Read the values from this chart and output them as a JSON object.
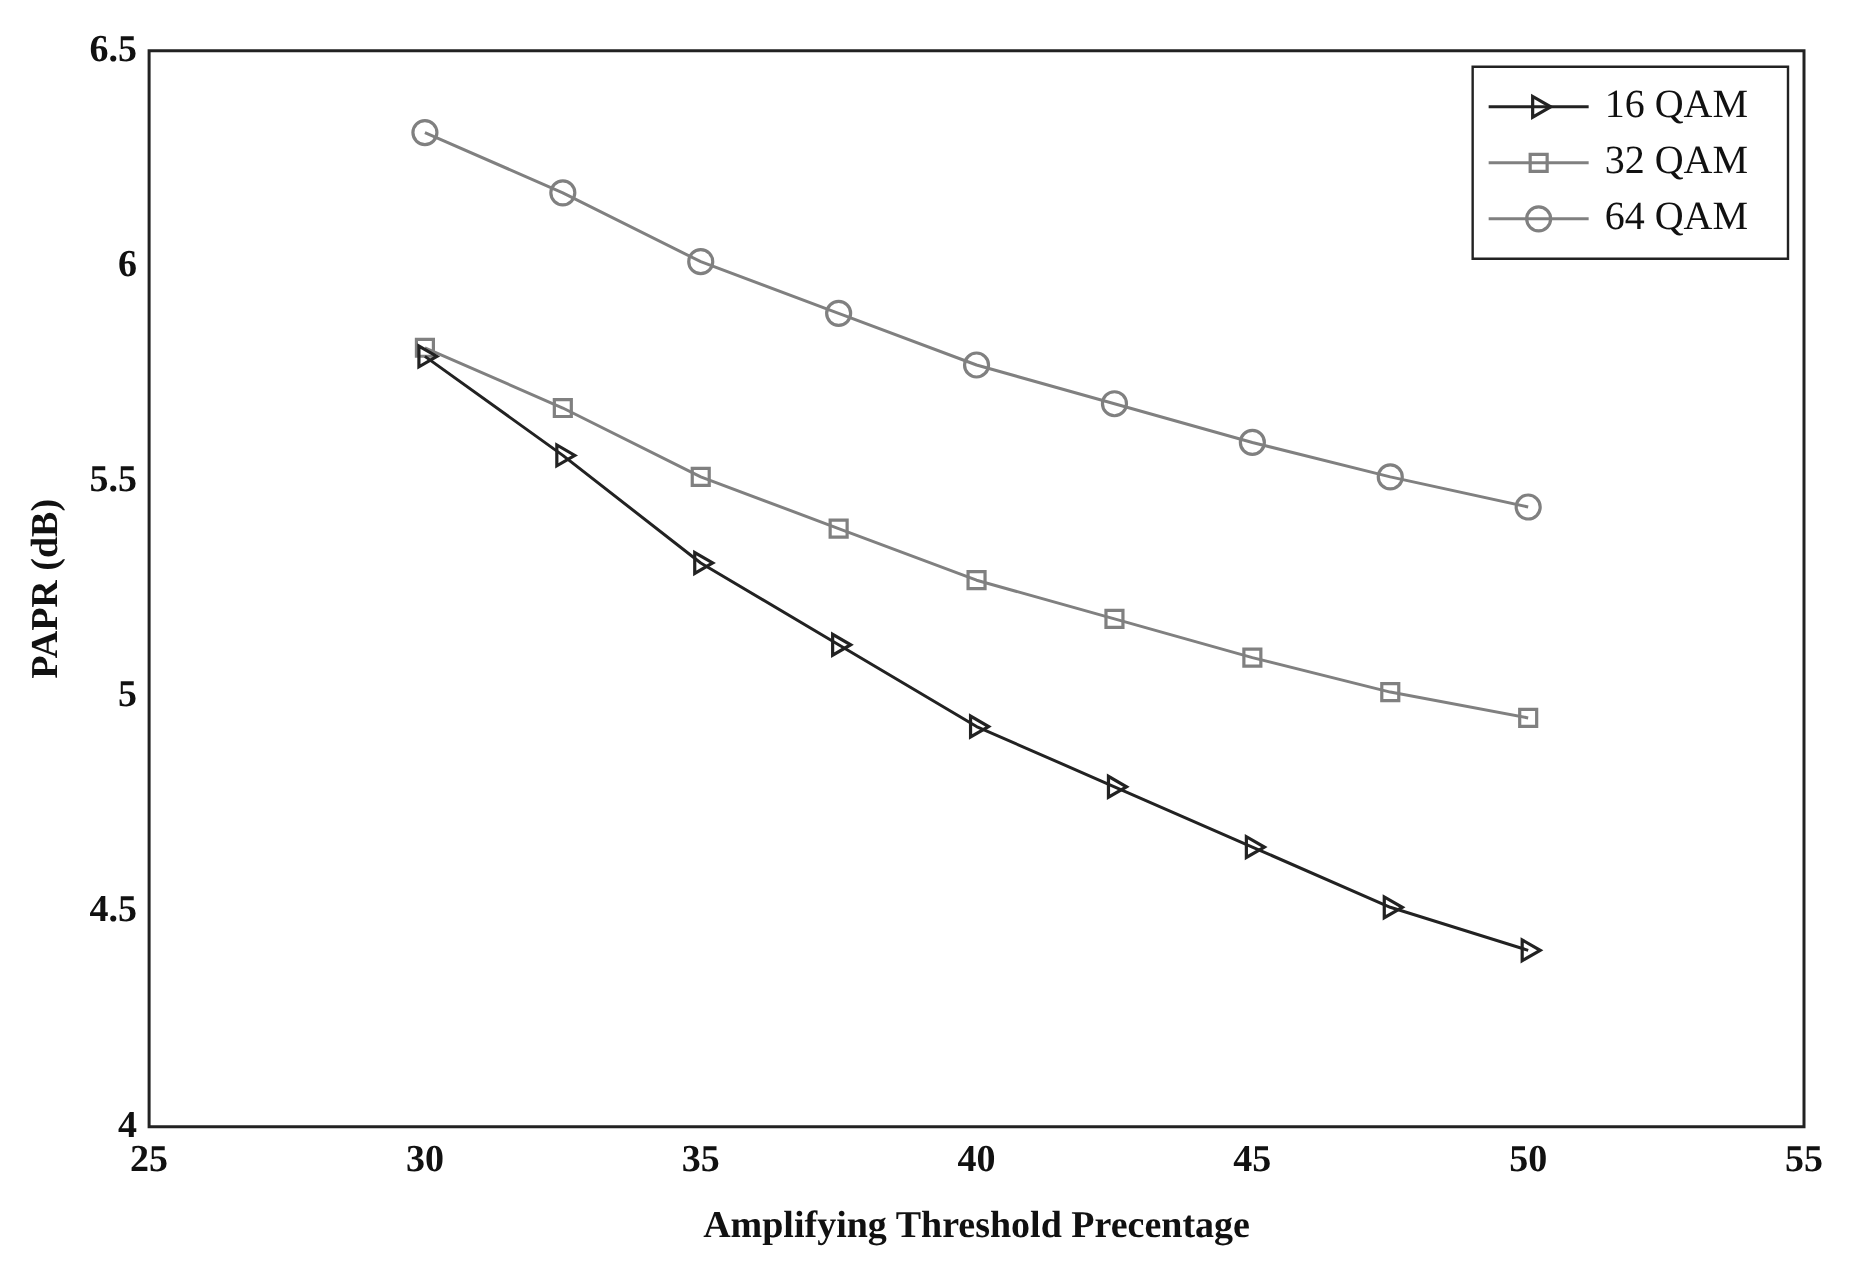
{
  "chart_data": {
    "type": "line",
    "xlabel": "Amplifying Threshold Precentage",
    "ylabel": "PAPR (dB)",
    "x": [
      30,
      32.5,
      35,
      37.5,
      40,
      42.5,
      45,
      47.5,
      50
    ],
    "xlim": [
      25,
      55
    ],
    "xticks": [
      25,
      30,
      35,
      40,
      45,
      50,
      55
    ],
    "ylim": [
      4,
      6.5
    ],
    "yticks": [
      4,
      4.5,
      5,
      5.5,
      6,
      6.5
    ],
    "grid": false,
    "legend": "top right",
    "line_style": "solid",
    "series": [
      {
        "name": "16 QAM",
        "color": "#222222",
        "marker": "triangle",
        "values": [
          5.79,
          5.56,
          5.31,
          5.12,
          4.93,
          4.79,
          4.65,
          4.51,
          4.41
        ]
      },
      {
        "name": "32 QAM",
        "color": "#808080",
        "marker": "square",
        "values": [
          5.81,
          5.67,
          5.51,
          5.39,
          5.27,
          5.18,
          5.09,
          5.01,
          4.95
        ]
      },
      {
        "name": "64 QAM",
        "color": "#808080",
        "marker": "circle",
        "values": [
          6.31,
          6.17,
          6.01,
          5.89,
          5.77,
          5.68,
          5.59,
          5.51,
          5.44
        ]
      }
    ]
  }
}
